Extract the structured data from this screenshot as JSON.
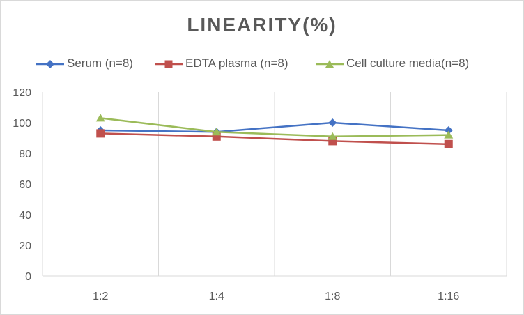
{
  "chart_data": {
    "type": "line",
    "title": "LINEARITY(%)",
    "categories": [
      "1:2",
      "1:4",
      "1:8",
      "1:16"
    ],
    "ylim": [
      0,
      120
    ],
    "yticks": [
      0,
      20,
      40,
      60,
      80,
      100,
      120
    ],
    "grid": "vertical",
    "legend_position": "top",
    "series": [
      {
        "name": "Serum (n=8)",
        "values": [
          95,
          94,
          100,
          95
        ],
        "color": "#4472c4",
        "marker": "diamond"
      },
      {
        "name": "EDTA plasma (n=8)",
        "values": [
          93,
          91,
          88,
          86
        ],
        "color": "#c0504d",
        "marker": "square"
      },
      {
        "name": "Cell culture media(n=8)",
        "values": [
          103,
          94,
          91,
          92
        ],
        "color": "#9bbb59",
        "marker": "triangle"
      }
    ]
  }
}
